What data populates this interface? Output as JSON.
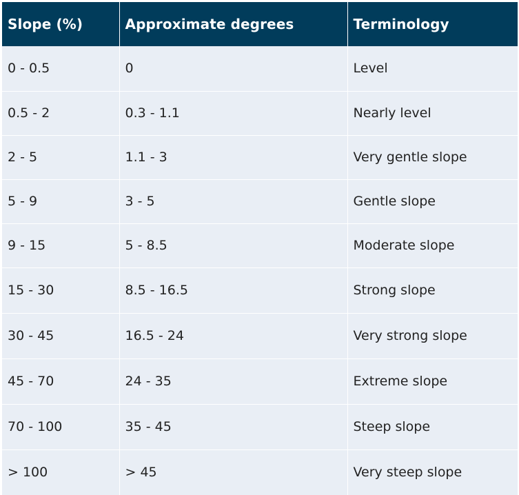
{
  "table": {
    "headers": [
      "Slope (%)",
      "Approximate degrees",
      "Terminology"
    ],
    "rows": [
      [
        "0 - 0.5",
        "0",
        "Level"
      ],
      [
        "0.5 - 2",
        "0.3 - 1.1",
        "Nearly level"
      ],
      [
        "2 - 5",
        "1.1 - 3",
        "Very gentle slope"
      ],
      [
        "5 - 9",
        "3 - 5",
        "Gentle slope"
      ],
      [
        "9 - 15",
        "5 - 8.5",
        "Moderate slope"
      ],
      [
        "15 - 30",
        "8.5 - 16.5",
        "Strong slope"
      ],
      [
        "30 - 45",
        "16.5 - 24",
        "Very strong slope"
      ],
      [
        "45 - 70",
        "24 - 35",
        "Extreme slope"
      ],
      [
        "70 - 100",
        "35 - 45",
        "Steep slope"
      ],
      [
        "> 100",
        "> 45",
        "Very steep slope"
      ]
    ]
  },
  "colors": {
    "header_background": "#013c5b",
    "header_text": "#ffffff",
    "row_background": "#e9eef5",
    "cell_text": "#222222",
    "divider": "#ffffff"
  }
}
